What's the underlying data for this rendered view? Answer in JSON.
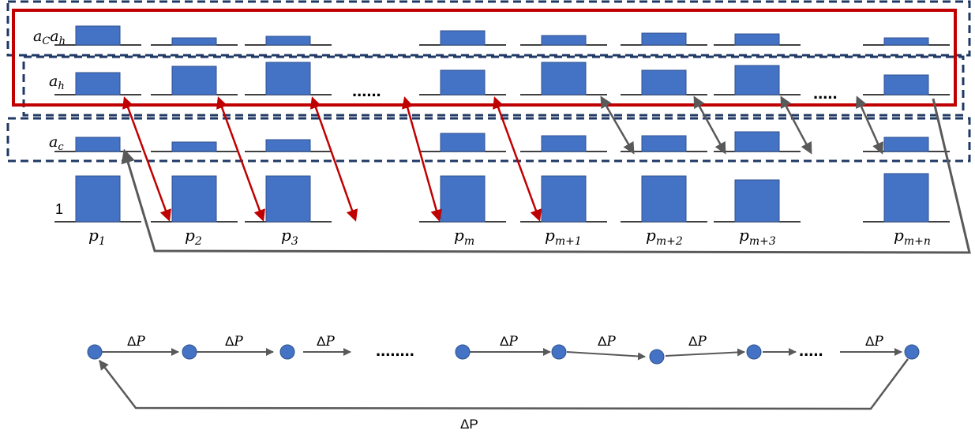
{
  "colors": {
    "bar_fill": "#4472c4",
    "bar_stroke": "#2f528f",
    "baseline": "#000000",
    "dashed_box": "#1f3864",
    "red_box": "#c00000",
    "red_arrow": "#c00000",
    "gray_arrow": "#595959",
    "node_fill": "#4472c4",
    "node_stroke": "#2f528f",
    "chain_arrow": "#595959"
  },
  "row_labels": {
    "ac_ah": "a",
    "ac_ah_sub1": "C",
    "ac_ah_mid": "a",
    "ac_ah_sub2": "h",
    "ah": "a",
    "ah_sub": "h",
    "ac": "a",
    "ac_sub": "c",
    "one": "1"
  },
  "ellipsis": {
    "ah_row_1": "......",
    "ah_row_2": ".....",
    "chain_1": "........",
    "chain_2": "....."
  },
  "columns": [
    {
      "base": "p",
      "sub": "1",
      "values": {
        "acah": 0.47,
        "ah": 0.55,
        "ac": 0.33,
        "one": 1.0
      }
    },
    {
      "base": "p",
      "sub": "2",
      "values": {
        "acah": 0.17,
        "ah": 0.72,
        "ac": 0.22,
        "one": 1.0
      }
    },
    {
      "base": "p",
      "sub": "3",
      "values": {
        "acah": 0.22,
        "ah": 0.81,
        "ac": 0.28,
        "one": 1.0
      }
    },
    {
      "base": "p",
      "sub": "m",
      "values": {
        "acah": 0.35,
        "ah": 0.61,
        "ac": 0.42,
        "one": 1.0
      }
    },
    {
      "base": "p",
      "sub": "m+1",
      "values": {
        "acah": 0.23,
        "ah": 0.81,
        "ac": 0.36,
        "one": 1.0
      }
    },
    {
      "base": "p",
      "sub": "m+2",
      "values": {
        "acah": 0.3,
        "ah": 0.61,
        "ac": 0.37,
        "one": 1.0
      }
    },
    {
      "base": "p",
      "sub": "m+3",
      "values": {
        "acah": 0.27,
        "ah": 0.73,
        "ac": 0.45,
        "one": 0.92
      }
    },
    {
      "base": "p",
      "sub": "m+n",
      "values": {
        "acah": 0.17,
        "ah": 0.5,
        "ac": 0.32,
        "one": 1.05
      }
    }
  ],
  "chain": {
    "delta_base": "Δ",
    "delta_var": "P",
    "edge_labels": 8,
    "loop_label": "ΔP"
  }
}
